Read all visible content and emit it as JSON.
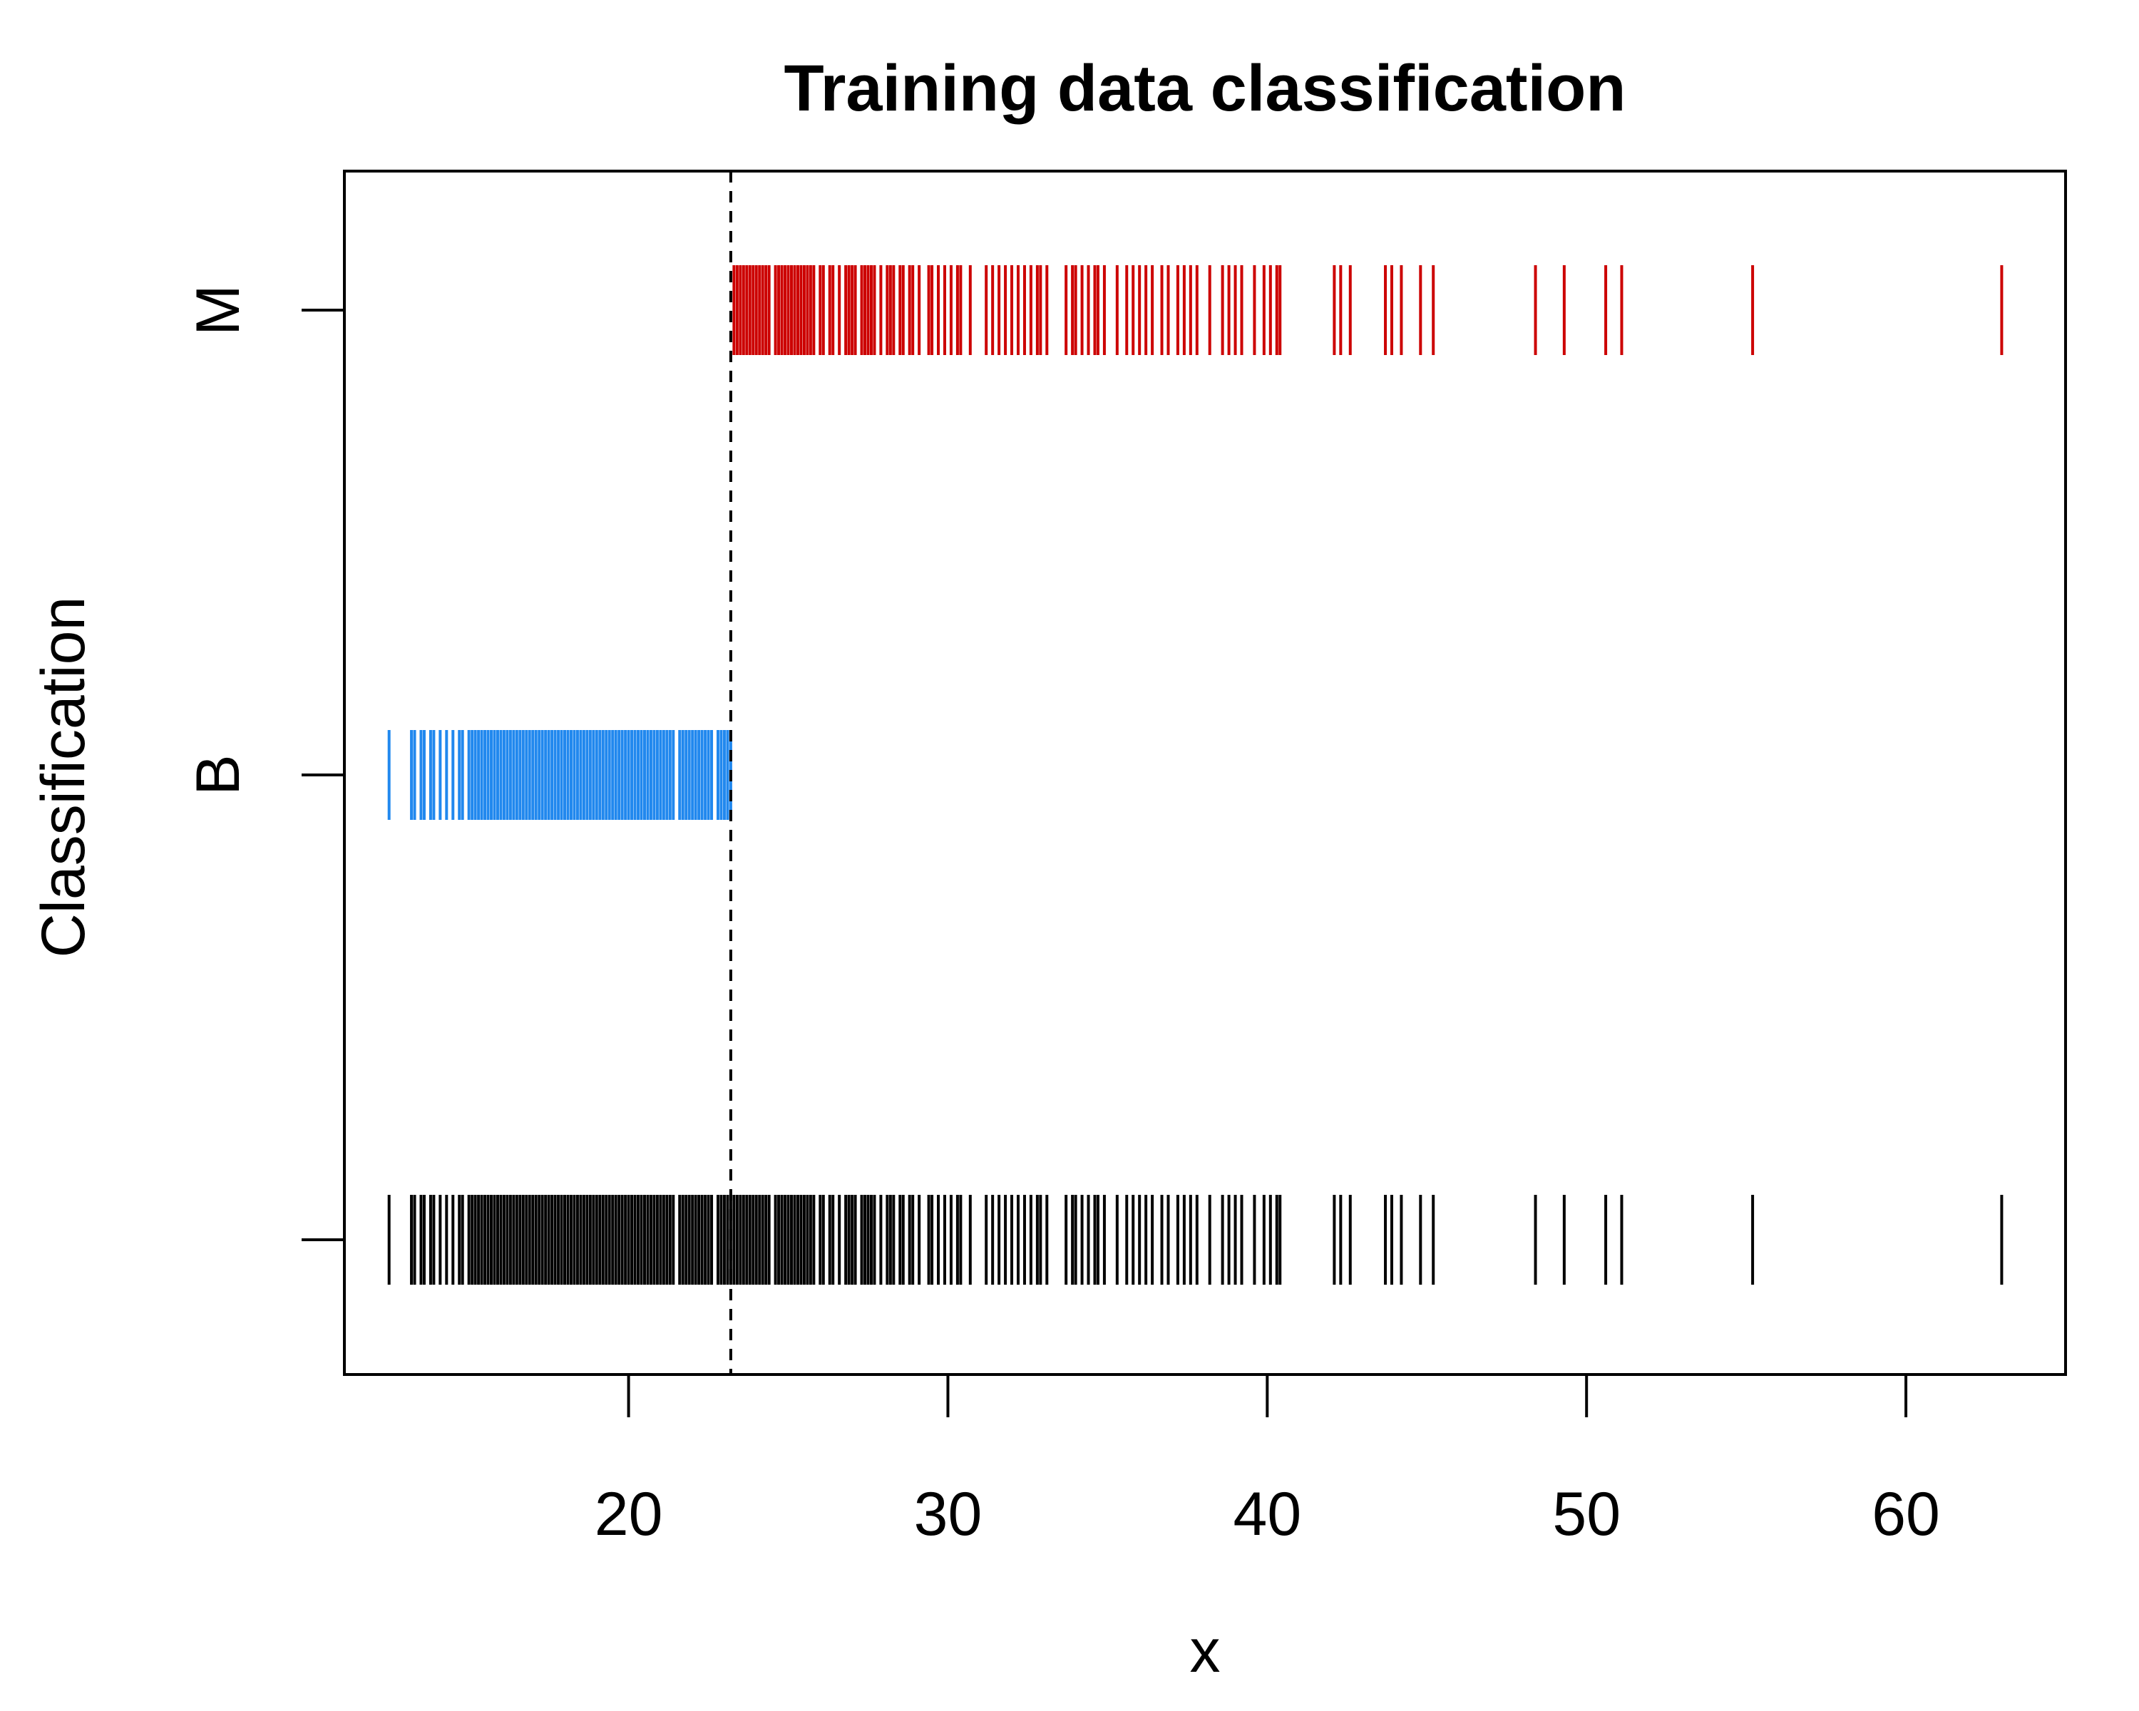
{
  "chart_data": {
    "type": "strip",
    "title": "Training data classification",
    "xlabel": "x",
    "ylabel": "Classification",
    "xlim": [
      11.1,
      65.0
    ],
    "x_ticks": [
      20,
      30,
      40,
      50,
      60
    ],
    "y_categories": [
      "",
      "B",
      "M"
    ],
    "threshold": 23.2,
    "series": [
      {
        "name": "B",
        "color": "#2188ee",
        "x": [
          12.5,
          13.2,
          13.3,
          13.5,
          13.6,
          13.8,
          13.9,
          14.1,
          14.3,
          14.5,
          14.7,
          14.8,
          15.0,
          15.1,
          15.2,
          15.3,
          15.4,
          15.5,
          15.6,
          15.7,
          15.8,
          15.9,
          16.0,
          16.1,
          16.2,
          16.3,
          16.4,
          16.5,
          16.6,
          16.7,
          16.8,
          16.9,
          17.0,
          17.1,
          17.2,
          17.3,
          17.4,
          17.5,
          17.6,
          17.7,
          17.8,
          17.9,
          18.0,
          18.1,
          18.2,
          18.3,
          18.4,
          18.5,
          18.6,
          18.7,
          18.8,
          18.9,
          19.0,
          19.1,
          19.2,
          19.3,
          19.4,
          19.5,
          19.6,
          19.7,
          19.8,
          19.9,
          20.0,
          20.1,
          20.2,
          20.3,
          20.4,
          20.5,
          20.6,
          20.7,
          20.8,
          20.9,
          21.0,
          21.1,
          21.2,
          21.3,
          21.4,
          21.6,
          21.7,
          21.8,
          21.9,
          22.0,
          22.1,
          22.2,
          22.3,
          22.4,
          22.5,
          22.6,
          22.8,
          22.9,
          23.0,
          23.1,
          23.2
        ]
      },
      {
        "name": "M",
        "color": "#cc0000",
        "x": [
          23.3,
          23.4,
          23.5,
          23.6,
          23.7,
          23.8,
          23.9,
          24.0,
          24.1,
          24.2,
          24.3,
          24.4,
          24.6,
          24.7,
          24.8,
          24.9,
          25.0,
          25.1,
          25.2,
          25.3,
          25.4,
          25.5,
          25.6,
          25.7,
          25.8,
          26.0,
          26.1,
          26.3,
          26.4,
          26.6,
          26.8,
          26.9,
          27.0,
          27.1,
          27.3,
          27.4,
          27.5,
          27.6,
          27.7,
          27.9,
          28.1,
          28.2,
          28.3,
          28.5,
          28.6,
          28.8,
          28.9,
          29.1,
          29.4,
          29.5,
          29.7,
          29.9,
          30.1,
          30.3,
          30.4,
          30.7,
          31.2,
          31.4,
          31.6,
          31.8,
          32.0,
          32.2,
          32.4,
          32.6,
          32.8,
          32.9,
          33.1,
          33.7,
          33.9,
          34.0,
          34.2,
          34.4,
          34.6,
          34.7,
          34.9,
          35.3,
          35.6,
          35.8,
          36.0,
          36.2,
          36.4,
          36.7,
          36.9,
          37.2,
          37.4,
          37.6,
          37.8,
          38.2,
          38.6,
          38.8,
          39.0,
          39.2,
          39.6,
          39.9,
          40.1,
          40.3,
          40.4,
          42.1,
          42.3,
          42.6,
          43.7,
          43.9,
          44.2,
          44.8,
          45.2,
          48.4,
          49.3,
          50.6,
          51.1,
          55.2,
          63.0
        ]
      }
    ]
  }
}
